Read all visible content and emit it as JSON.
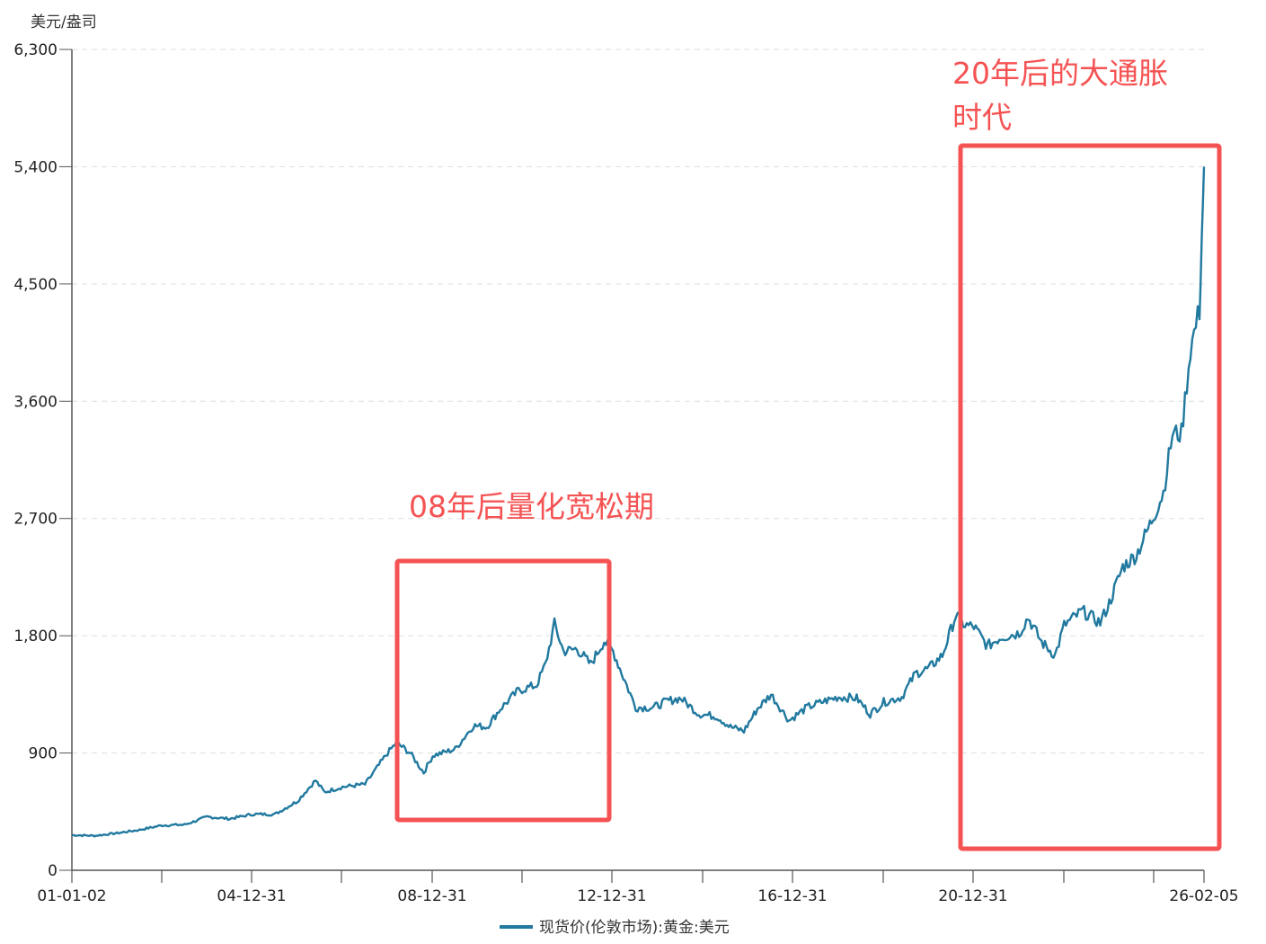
{
  "chart_data": {
    "type": "line",
    "title": "",
    "ylabel": "美元/盎司",
    "xlabel": "",
    "ylim": [
      0,
      6300
    ],
    "yticks": [
      0,
      900,
      1800,
      2700,
      3600,
      4500,
      5400,
      6300
    ],
    "ytick_labels": [
      "0",
      "900",
      "1,800",
      "2,700",
      "3,600",
      "4,500",
      "5,400",
      "6,300"
    ],
    "xtick_labels": [
      "01-01-02",
      "04-12-31",
      "08-12-31",
      "12-12-31",
      "16-12-31",
      "20-12-31",
      "26-02-05"
    ],
    "x_range": [
      "2001-01-02",
      "2026-02-05"
    ],
    "grid": "horizontal dashed",
    "legend_position": "bottom-center",
    "series": [
      {
        "name": "现货价(伦敦市场):黄金:美元",
        "color": "#21799f",
        "x_years": [
          2001.0,
          2001.5,
          2002.0,
          2002.5,
          2003.0,
          2003.5,
          2004.0,
          2004.5,
          2005.0,
          2005.5,
          2006.0,
          2006.4,
          2006.6,
          2007.0,
          2007.5,
          2008.0,
          2008.2,
          2008.5,
          2008.8,
          2009.0,
          2009.5,
          2009.9,
          2010.2,
          2010.5,
          2010.9,
          2011.3,
          2011.5,
          2011.7,
          2011.9,
          2012.2,
          2012.5,
          2012.8,
          2013.0,
          2013.3,
          2013.5,
          2013.9,
          2014.2,
          2014.5,
          2014.9,
          2015.3,
          2015.6,
          2015.9,
          2016.2,
          2016.5,
          2016.9,
          2017.3,
          2017.7,
          2018.0,
          2018.4,
          2018.7,
          2019.0,
          2019.4,
          2019.7,
          2020.0,
          2020.3,
          2020.6,
          2020.8,
          2021.0,
          2021.3,
          2021.6,
          2022.0,
          2022.2,
          2022.5,
          2022.8,
          2023.0,
          2023.4,
          2023.8,
          2024.0,
          2024.3,
          2024.6,
          2024.9,
          2025.2,
          2025.4,
          2025.6,
          2025.8,
          2026.0,
          2026.1
        ],
        "values": [
          270,
          265,
          285,
          310,
          345,
          350,
          410,
          395,
          430,
          430,
          530,
          690,
          600,
          640,
          660,
          900,
          980,
          900,
          750,
          880,
          930,
          1110,
          1100,
          1240,
          1380,
          1420,
          1580,
          1890,
          1680,
          1700,
          1580,
          1760,
          1680,
          1420,
          1250,
          1250,
          1300,
          1320,
          1200,
          1180,
          1100,
          1070,
          1240,
          1350,
          1150,
          1250,
          1300,
          1330,
          1320,
          1200,
          1290,
          1330,
          1510,
          1550,
          1650,
          1960,
          1880,
          1870,
          1720,
          1790,
          1820,
          1940,
          1750,
          1650,
          1880,
          1990,
          1900,
          2050,
          2330,
          2420,
          2650,
          2900,
          3350,
          3350,
          4000,
          4300,
          5400
        ]
      }
    ],
    "annotations": [
      {
        "text": "08年后量化宽松期",
        "box_x_years": [
          2008.0,
          2012.9
        ],
        "box_values": [
          380,
          2350
        ]
      },
      {
        "text": "20年后的大通胀时代",
        "box_x_years": [
          2020.7,
          2026.5
        ],
        "box_values": [
          150,
          5460
        ]
      }
    ]
  },
  "axis": {
    "unit_label": "美元/盎司"
  },
  "legend": {
    "label": "现货价(伦敦市场):黄金:美元",
    "color": "#21799f"
  },
  "annotations": {
    "qe": {
      "line1": "08年后量化宽松期"
    },
    "inflation": {
      "line1": "20年后的大通胀",
      "line2": "时代"
    }
  },
  "colors": {
    "line": "#21799f",
    "annotation": "#f55353",
    "grid": "#dddddd",
    "axis": "#555555"
  }
}
